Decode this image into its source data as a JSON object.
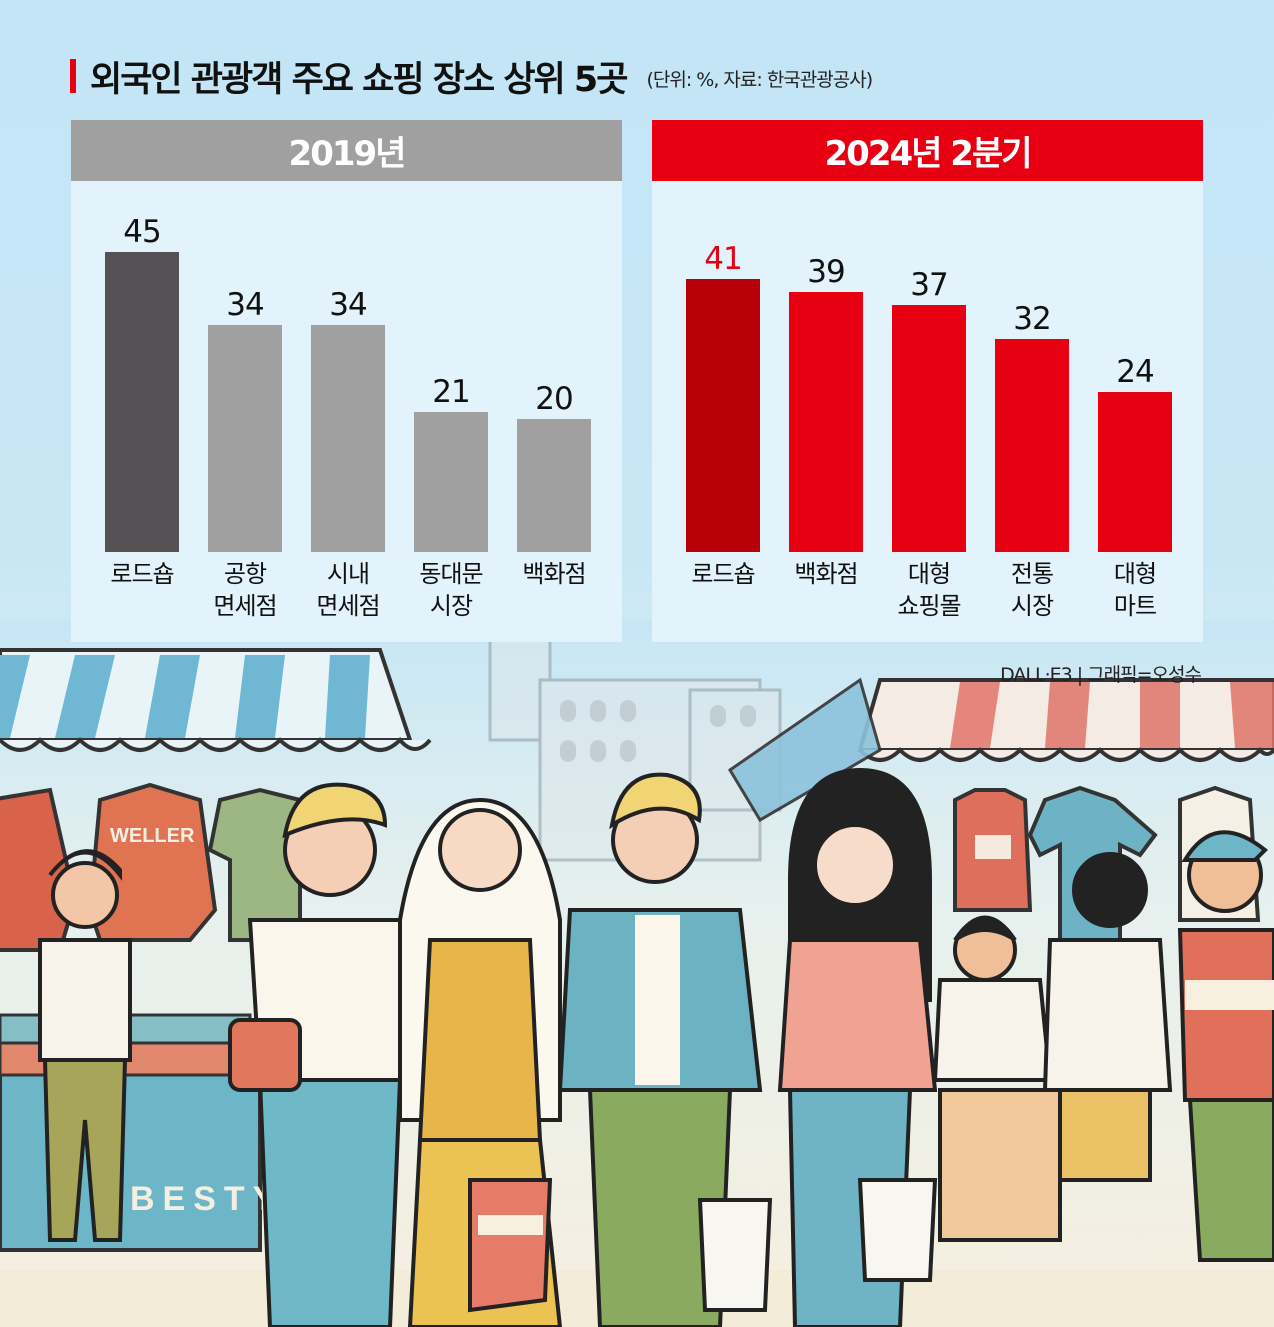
{
  "header": {
    "title": "외국인 관광객 주요 쇼핑  장소 상위 5곳",
    "subtitle": "(단위: %, 자료: 한국관광공사)"
  },
  "panels": [
    {
      "label": "2019년",
      "header_color": "#a0a0a0",
      "bars": [
        {
          "category": "로드숍",
          "value": "45",
          "color": "#545254",
          "value_color": "#111111"
        },
        {
          "category": "공항\n면세점",
          "value": "34",
          "color": "#a0a0a0",
          "value_color": "#111111"
        },
        {
          "category": "시내\n면세점",
          "value": "34",
          "color": "#a0a0a0",
          "value_color": "#111111"
        },
        {
          "category": "동대문\n시장",
          "value": "21",
          "color": "#a0a0a0",
          "value_color": "#111111"
        },
        {
          "category": "백화점",
          "value": "20",
          "color": "#a0a0a0",
          "value_color": "#111111"
        }
      ]
    },
    {
      "label": "2024년 2분기",
      "header_color": "#e60012",
      "bars": [
        {
          "category": "로드숍",
          "value": "41",
          "color": "#b70008",
          "value_color": "#e60012"
        },
        {
          "category": "백화점",
          "value": "39",
          "color": "#e60012",
          "value_color": "#111111"
        },
        {
          "category": "대형\n쇼핑몰",
          "value": "37",
          "color": "#e60012",
          "value_color": "#111111"
        },
        {
          "category": "전통\n시장",
          "value": "32",
          "color": "#e60012",
          "value_color": "#111111"
        },
        {
          "category": "대형\n마트",
          "value": "24",
          "color": "#e60012",
          "value_color": "#111111"
        }
      ]
    }
  ],
  "credit": "DALL·E3 | 그래픽=오성수",
  "illustration": {
    "description": "Cartoon of tourists shopping at a street market with striped awnings and hanging clothes",
    "sign_text": "BESTY",
    "hoodie_text": "WELLER"
  },
  "chart_data": [
    {
      "type": "bar",
      "title": "외국인 관광객 주요 쇼핑 장소 상위 5곳 — 2019년",
      "subtitle": "(단위: %, 자료: 한국관광공사)",
      "categories": [
        "로드숍",
        "공항 면세점",
        "시내 면세점",
        "동대문 시장",
        "백화점"
      ],
      "values": [
        45,
        34,
        34,
        21,
        20
      ],
      "xlabel": "",
      "ylabel": "%",
      "ylim": [
        0,
        50
      ],
      "grid": false,
      "legend": null
    },
    {
      "type": "bar",
      "title": "외국인 관광객 주요 쇼핑 장소 상위 5곳 — 2024년 2분기",
      "subtitle": "(단위: %, 자료: 한국관광공사)",
      "categories": [
        "로드숍",
        "백화점",
        "대형 쇼핑몰",
        "전통 시장",
        "대형 마트"
      ],
      "values": [
        41,
        39,
        37,
        32,
        24
      ],
      "xlabel": "",
      "ylabel": "%",
      "ylim": [
        0,
        50
      ],
      "grid": false,
      "legend": null
    }
  ]
}
